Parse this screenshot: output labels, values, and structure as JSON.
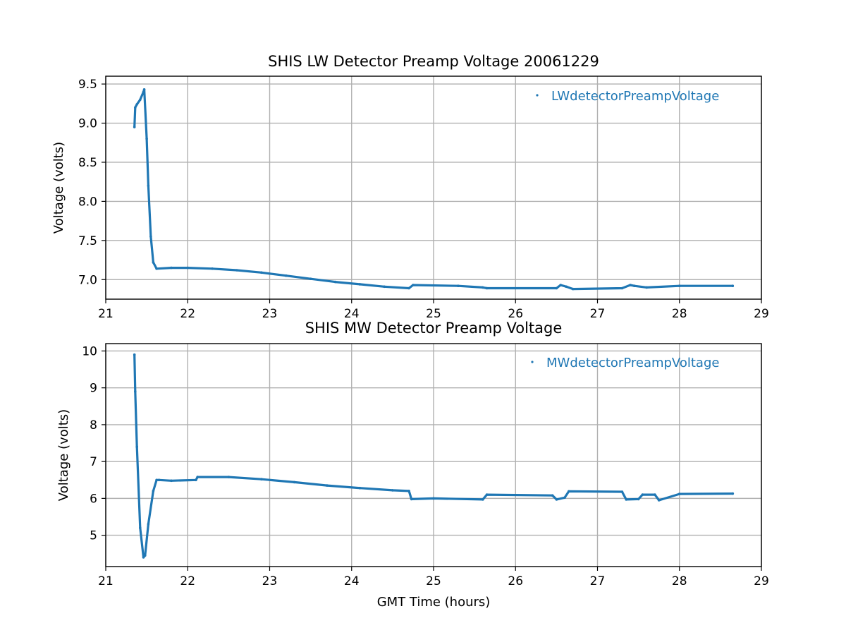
{
  "chart_data": [
    {
      "type": "scatter",
      "title": "SHIS LW Detector Preamp Voltage 20061229",
      "xlabel": "",
      "ylabel": "Voltage (volts)",
      "xlim": [
        21,
        29
      ],
      "ylim": [
        6.75,
        9.6
      ],
      "xticks": [
        "21",
        "22",
        "23",
        "24",
        "25",
        "26",
        "27",
        "28",
        "29"
      ],
      "yticks": [
        "7.0",
        "7.5",
        "8.0",
        "8.5",
        "9.0",
        "9.5"
      ],
      "grid": true,
      "legend_position": "top-right",
      "color": "#1f77b4",
      "series": [
        {
          "name": "LWdetectorPreampVoltage",
          "x": [
            21.35,
            21.36,
            21.38,
            21.42,
            21.46,
            21.47,
            21.5,
            21.52,
            21.55,
            21.58,
            21.62,
            21.8,
            22.0,
            22.3,
            22.6,
            22.9,
            23.2,
            23.5,
            23.8,
            24.1,
            24.4,
            24.7,
            24.75,
            25.3,
            25.6,
            25.65,
            26.5,
            26.55,
            26.62,
            26.7,
            27.3,
            27.4,
            27.45,
            27.6,
            28.0,
            28.65
          ],
          "y": [
            8.95,
            9.2,
            9.24,
            9.3,
            9.4,
            9.43,
            8.8,
            8.2,
            7.55,
            7.22,
            7.14,
            7.15,
            7.15,
            7.14,
            7.12,
            7.09,
            7.05,
            7.01,
            6.97,
            6.94,
            6.91,
            6.89,
            6.93,
            6.92,
            6.9,
            6.89,
            6.89,
            6.93,
            6.91,
            6.88,
            6.89,
            6.93,
            6.92,
            6.9,
            6.92,
            6.92
          ]
        }
      ]
    },
    {
      "type": "scatter",
      "title": "SHIS MW Detector Preamp Voltage",
      "xlabel": "GMT Time (hours)",
      "ylabel": "Voltage (volts)",
      "xlim": [
        21,
        29
      ],
      "ylim": [
        4.15,
        10.2
      ],
      "xticks": [
        "21",
        "22",
        "23",
        "24",
        "25",
        "26",
        "27",
        "28",
        "29"
      ],
      "yticks": [
        "5",
        "6",
        "7",
        "8",
        "9",
        "10"
      ],
      "grid": true,
      "legend_position": "top-right",
      "color": "#1f77b4",
      "series": [
        {
          "name": "MWdetectorPreampVoltage",
          "x": [
            21.35,
            21.36,
            21.38,
            21.42,
            21.46,
            21.48,
            21.52,
            21.58,
            21.62,
            21.65,
            21.8,
            22.1,
            22.12,
            22.5,
            22.9,
            23.3,
            23.7,
            24.1,
            24.5,
            24.7,
            24.73,
            25.0,
            25.6,
            25.65,
            26.45,
            26.5,
            26.6,
            26.65,
            27.3,
            27.35,
            27.5,
            27.55,
            27.7,
            27.75,
            28.0,
            28.65
          ],
          "y": [
            9.9,
            8.9,
            7.4,
            5.2,
            4.4,
            4.45,
            5.3,
            6.2,
            6.5,
            6.5,
            6.48,
            6.5,
            6.58,
            6.58,
            6.52,
            6.44,
            6.35,
            6.28,
            6.22,
            6.2,
            5.98,
            6.0,
            5.97,
            6.1,
            6.08,
            5.97,
            6.02,
            6.19,
            6.18,
            5.97,
            5.98,
            6.1,
            6.1,
            5.95,
            6.12,
            6.13
          ]
        }
      ]
    }
  ]
}
